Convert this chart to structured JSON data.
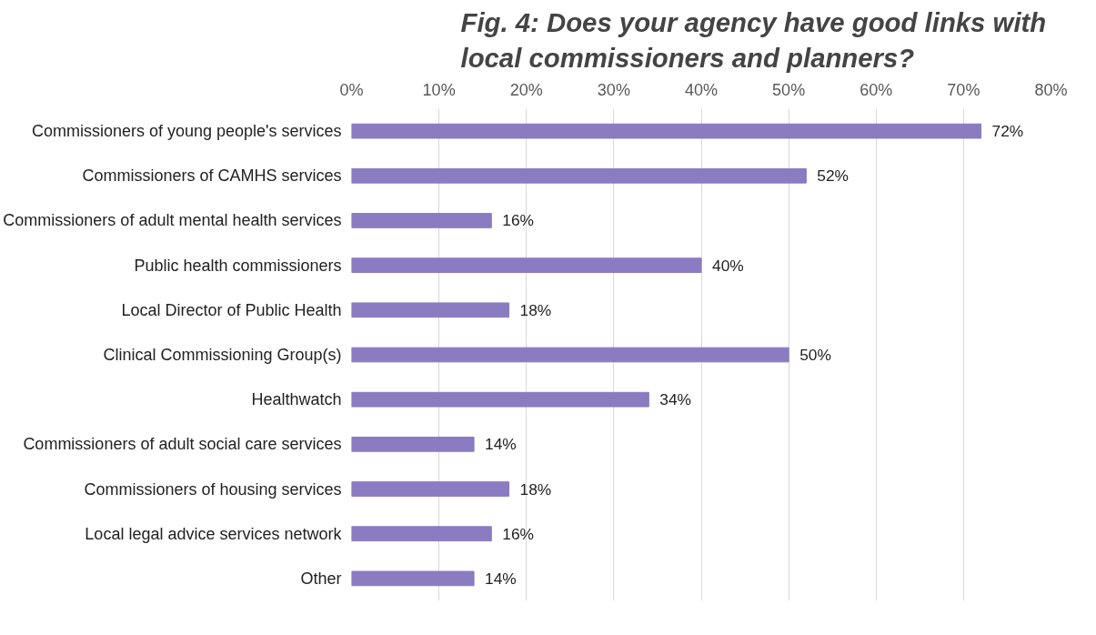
{
  "chart_data": {
    "type": "bar",
    "orientation": "horizontal",
    "title": "Fig. 4: Does your agency have good links with local commissioners and planners?",
    "categories": [
      "Commissioners of young people's services",
      "Commissioners of CAMHS services",
      "Commissioners of adult mental health services",
      "Public health commissioners",
      "Local Director of Public Health",
      "Clinical Commissioning Group(s)",
      "Healthwatch",
      "Commissioners of adult social care services",
      "Commissioners of housing services",
      "Local legal advice services network",
      "Other"
    ],
    "values": [
      72,
      52,
      16,
      40,
      18,
      50,
      34,
      14,
      18,
      16,
      14
    ],
    "value_labels": [
      "72%",
      "52%",
      "16%",
      "40%",
      "18%",
      "50%",
      "34%",
      "14%",
      "18%",
      "16%",
      "14%"
    ],
    "color": "#8b7bc1",
    "xlim": [
      0,
      80
    ],
    "xticks": [
      {
        "value": 0,
        "label": "0%"
      },
      {
        "value": 10,
        "label": "10%"
      },
      {
        "value": 20,
        "label": "20%"
      },
      {
        "value": 30,
        "label": "30%"
      },
      {
        "value": 40,
        "label": "40%"
      },
      {
        "value": 50,
        "label": "50%"
      },
      {
        "value": 60,
        "label": "60%"
      },
      {
        "value": 70,
        "label": "70%"
      },
      {
        "value": 80,
        "label": "80%"
      }
    ],
    "grid": "x"
  }
}
